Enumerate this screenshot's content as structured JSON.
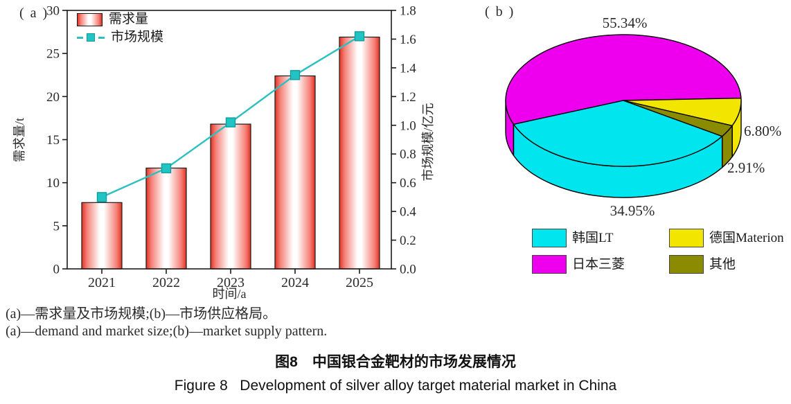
{
  "figure": {
    "panel_a_label": "( a )",
    "panel_b_label": "( b )",
    "caption_zh": "(a)—需求量及市场规模;(b)—市场供应格局。",
    "caption_en": "(a)—demand and market size;(b)—market supply pattern.",
    "title_zh": "图8　中国银合金靶材的市场发展情况",
    "title_en": "Figure 8   Development of silver alloy target material market in China"
  },
  "panel_a_legend": {
    "demand_label": "需求量",
    "market_label": "市场规模"
  },
  "panel_b_legend": [
    {
      "label": "韩国LT",
      "color": "#00e5ee"
    },
    {
      "label": "德国Materion",
      "color": "#f2e600"
    },
    {
      "label": "日本三菱",
      "color": "#ee00ee"
    },
    {
      "label": "其他",
      "color": "#8b8b00"
    }
  ],
  "colors": {
    "bar_edge_red": "#e23322",
    "bar_mid_red": "#f58077",
    "bar_center": "#ffffff",
    "line_teal": "#2cc0c0",
    "marker_fill": "#22c3c3",
    "marker_stroke": "#0f9e9e",
    "axis_black": "#1a1a1a",
    "pie_magenta": "#ee00ee",
    "pie_cyan": "#00e5ee",
    "pie_yellow": "#f2e600",
    "pie_olive": "#8b8b00"
  },
  "chart_data": [
    {
      "type": "bar",
      "title": "",
      "categories": [
        "2021",
        "2022",
        "2023",
        "2024",
        "2025"
      ],
      "series": [
        {
          "name": "需求量",
          "type": "bar",
          "axis": "left",
          "values": [
            7.7,
            11.7,
            16.8,
            22.4,
            26.9
          ]
        },
        {
          "name": "市场规模",
          "type": "line",
          "axis": "right",
          "values": [
            0.5,
            0.7,
            1.02,
            1.35,
            1.62
          ]
        }
      ],
      "xlabel": "时间/a",
      "ylabel_left": "需求量/t",
      "ylabel_right": "市场规模/亿元",
      "ylim_left": [
        0,
        30
      ],
      "ytick_step_left": 5,
      "ylim_right": [
        0,
        1.8
      ],
      "ytick_step_right": 0.2,
      "grid": false,
      "legend_position": "top-left-inside"
    },
    {
      "type": "pie",
      "style": "3d",
      "start_angle_deg": 2,
      "slices": [
        {
          "name": "日本三菱",
          "value": 55.34,
          "label": "55.34%",
          "color": "#ee00ee"
        },
        {
          "name": "韩国LT",
          "value": 34.95,
          "label": "34.95%",
          "color": "#00e5ee"
        },
        {
          "name": "其他",
          "value": 2.91,
          "label": "2.91%",
          "color": "#8b8b00"
        },
        {
          "name": "德国Materion",
          "value": 6.8,
          "label": "6.80%",
          "color": "#f2e600"
        }
      ],
      "legend_position": "bottom"
    }
  ]
}
